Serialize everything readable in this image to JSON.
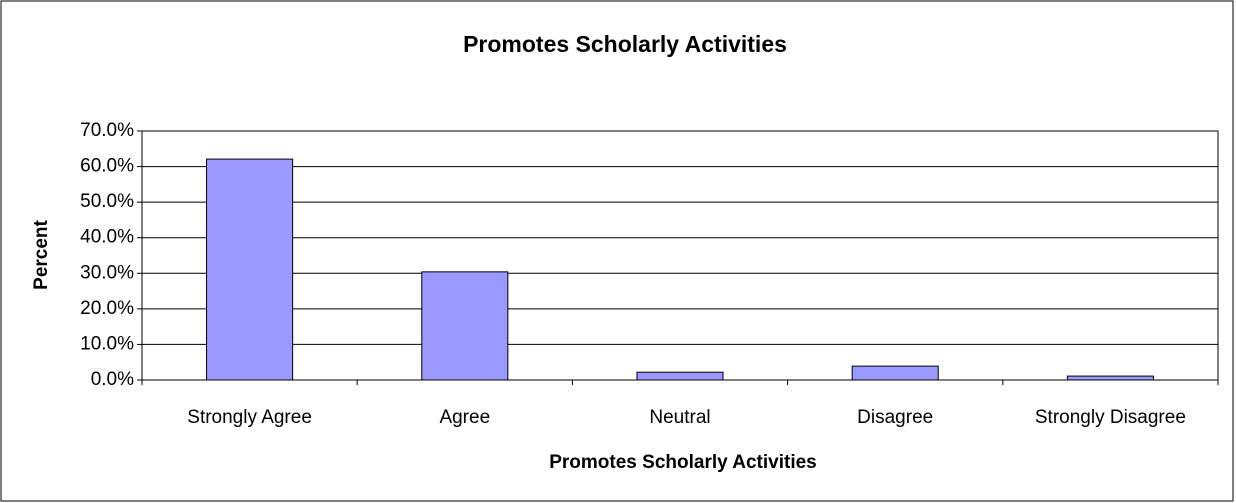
{
  "chart_data": {
    "type": "bar",
    "title": "Promotes Scholarly Activities",
    "x_label": "Promotes Scholarly Activities",
    "y_label": "Percent",
    "categories": [
      "Strongly Agree",
      "Agree",
      "Neutral",
      "Disagree",
      "Strongly Disagree"
    ],
    "values": [
      62.1,
      30.4,
      2.2,
      3.9,
      1.1
    ],
    "color": "#9999ff",
    "ylim": [
      0,
      70
    ],
    "yticks": [
      {
        "value": 0,
        "label": "0.0%"
      },
      {
        "value": 10,
        "label": "10.0%"
      },
      {
        "value": 20,
        "label": "20.0%"
      },
      {
        "value": 30,
        "label": "30.0%"
      },
      {
        "value": 40,
        "label": "40.0%"
      },
      {
        "value": 50,
        "label": "50.0%"
      },
      {
        "value": 60,
        "label": "60.0%"
      },
      {
        "value": 70,
        "label": "70.0%"
      }
    ],
    "grid": true
  }
}
